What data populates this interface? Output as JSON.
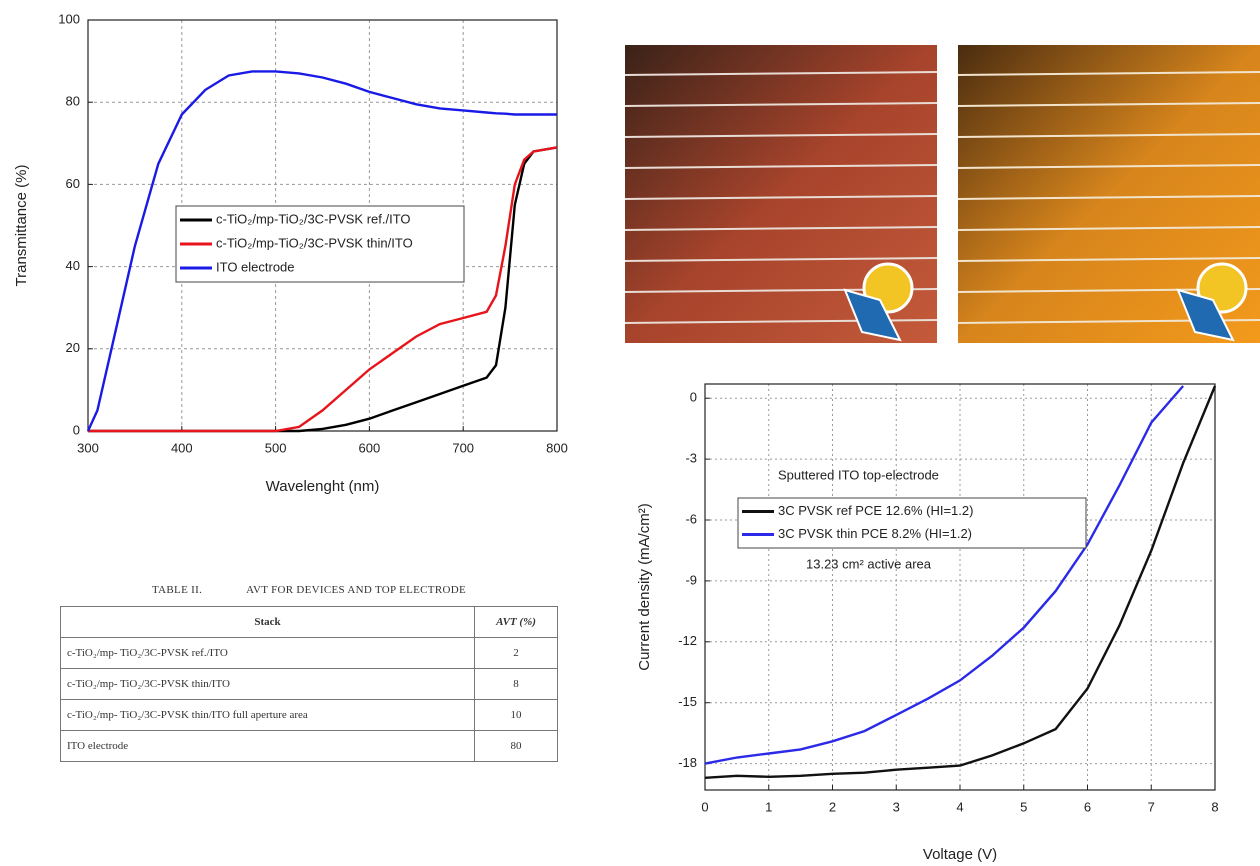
{
  "chart_data": [
    {
      "type": "line",
      "xlabel": "Wavelenght (nm)",
      "ylabel": "Transmittance (%)",
      "x": [
        300,
        310,
        325,
        350,
        375,
        400,
        425,
        450,
        475,
        500,
        525,
        550,
        575,
        600,
        625,
        650,
        675,
        700,
        725,
        735,
        745,
        755,
        765,
        775,
        800
      ],
      "series": [
        {
          "name": "c-TiO₂/mp-TiO₂/3C-PVSK ref./ITO",
          "color": "#000000",
          "values": [
            0,
            0,
            0,
            0,
            0,
            0,
            0,
            0,
            0,
            0,
            0,
            0.5,
            1.5,
            3,
            5,
            7,
            9,
            11,
            13,
            16,
            30,
            55,
            65,
            68,
            69
          ]
        },
        {
          "name": "c-TiO₂/mp-TiO₂/3C-PVSK thin/ITO",
          "color": "#e8141c",
          "values": [
            0,
            0,
            0,
            0,
            0,
            0,
            0,
            0,
            0,
            0,
            1,
            5,
            10,
            15,
            19,
            23,
            26,
            27.5,
            29,
            33,
            45,
            60,
            66,
            68,
            69
          ]
        },
        {
          "name": "ITO electrode",
          "color": "#1a1ae6",
          "values": [
            0,
            5,
            20,
            45,
            65,
            77,
            83,
            86.5,
            87.5,
            87.5,
            87,
            86,
            84.5,
            82.5,
            81,
            79.5,
            78.5,
            78,
            77.5,
            77.3,
            77.2,
            77,
            77,
            77,
            77
          ]
        }
      ],
      "xlim": [
        300,
        800
      ],
      "ylim": [
        0,
        100
      ],
      "xticks": [
        300,
        400,
        500,
        600,
        700,
        800
      ],
      "yticks": [
        0,
        20,
        40,
        60,
        80,
        100
      ],
      "grid": true
    },
    {
      "type": "line",
      "xlabel": "Voltage (V)",
      "ylabel": "Current density (mA/cm²)",
      "annotations": [
        "Sputtered ITO top-electrode",
        "13.23 cm² active area"
      ],
      "x": [
        0,
        0.5,
        1,
        1.5,
        2,
        2.5,
        3,
        3.5,
        4,
        4.5,
        5,
        5.5,
        6,
        6.5,
        7,
        7.5,
        8
      ],
      "series": [
        {
          "name": "3C PVSK ref   PCE 12.6% (HI=1.2)",
          "color": "#111111",
          "values": [
            -18.7,
            -18.6,
            -18.65,
            -18.6,
            -18.5,
            -18.45,
            -18.3,
            -18.2,
            -18.1,
            -17.6,
            -17.0,
            -16.3,
            -14.3,
            -11.2,
            -7.5,
            -3.2,
            0.6
          ]
        },
        {
          "name": "3C PVSK thin  PCE  8.2%  (HI=1.2)",
          "color": "#2a2ae8",
          "values": [
            -18.0,
            -17.7,
            -17.5,
            -17.3,
            -16.9,
            -16.4,
            -15.6,
            -14.8,
            -13.9,
            -12.7,
            -11.3,
            -9.5,
            -7.2,
            -4.3,
            -1.2,
            0.6,
            null
          ]
        }
      ],
      "xlim": [
        0,
        8
      ],
      "ylim": [
        -19.3,
        0.7
      ],
      "xticks": [
        0,
        1,
        2,
        3,
        4,
        5,
        6,
        7,
        8
      ],
      "yticks": [
        0,
        -3,
        -6,
        -9,
        -12,
        -15,
        -18
      ],
      "grid": true
    }
  ],
  "table": {
    "number": "TABLE II.",
    "title": "AVT FOR DEVICES AND TOP ELECTRODE",
    "header": [
      "Stack",
      "AVT (%)"
    ],
    "rows": [
      [
        "c-TiO₂/mp- TiO₂/3C-PVSK ref./ITO",
        "2"
      ],
      [
        "c-TiO₂/mp- TiO₂/3C-PVSK thin/ITO",
        "8"
      ],
      [
        "c-TiO₂/mp- TiO₂/3C-PVSK thin/ITO full aperture area",
        "10"
      ],
      [
        "ITO electrode",
        "80"
      ]
    ]
  }
}
